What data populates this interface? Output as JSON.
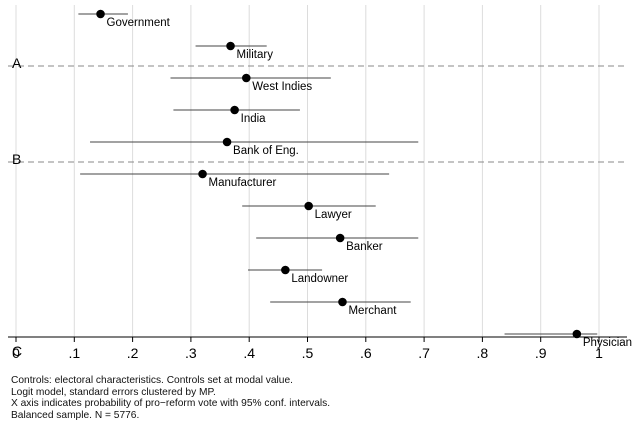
{
  "chart_data": {
    "type": "scatter",
    "subtype": "coefficient-plot-with-95ci",
    "xlim": [
      0,
      1
    ],
    "x_ticks": [
      "0",
      ".1",
      ".2",
      ".3",
      ".4",
      ".5",
      ".6",
      ".7",
      ".8",
      ".9",
      "1"
    ],
    "grid": "vertical",
    "groups": [
      {
        "label": "A",
        "items": [
          {
            "name": "Government",
            "estimate": 0.145,
            "ci_low": 0.107,
            "ci_high": 0.192
          },
          {
            "name": "Military",
            "estimate": 0.368,
            "ci_low": 0.308,
            "ci_high": 0.43
          }
        ]
      },
      {
        "label": "B",
        "items": [
          {
            "name": "West Indies",
            "estimate": 0.395,
            "ci_low": 0.265,
            "ci_high": 0.54
          },
          {
            "name": "India",
            "estimate": 0.375,
            "ci_low": 0.27,
            "ci_high": 0.487
          },
          {
            "name": "Bank of Eng.",
            "estimate": 0.362,
            "ci_low": 0.127,
            "ci_high": 0.69
          }
        ]
      },
      {
        "label": "C",
        "items": [
          {
            "name": "Manufacturer",
            "estimate": 0.32,
            "ci_low": 0.11,
            "ci_high": 0.64
          },
          {
            "name": "Lawyer",
            "estimate": 0.502,
            "ci_low": 0.388,
            "ci_high": 0.617
          },
          {
            "name": "Banker",
            "estimate": 0.556,
            "ci_low": 0.412,
            "ci_high": 0.69
          },
          {
            "name": "Landowner",
            "estimate": 0.462,
            "ci_low": 0.398,
            "ci_high": 0.525
          },
          {
            "name": "Merchant",
            "estimate": 0.56,
            "ci_low": 0.436,
            "ci_high": 0.677
          },
          {
            "name": "Physician",
            "estimate": 0.962,
            "ci_low": 0.838,
            "ci_high": 0.997
          }
        ]
      }
    ]
  },
  "notes": [
    "Controls: electoral characteristics. Controls set at modal value.",
    "Logit model, standard errors clustered by MP.",
    "X axis indicates probability of pro−reform vote with 95% conf. intervals.",
    "Balanced sample. N = 5776."
  ]
}
